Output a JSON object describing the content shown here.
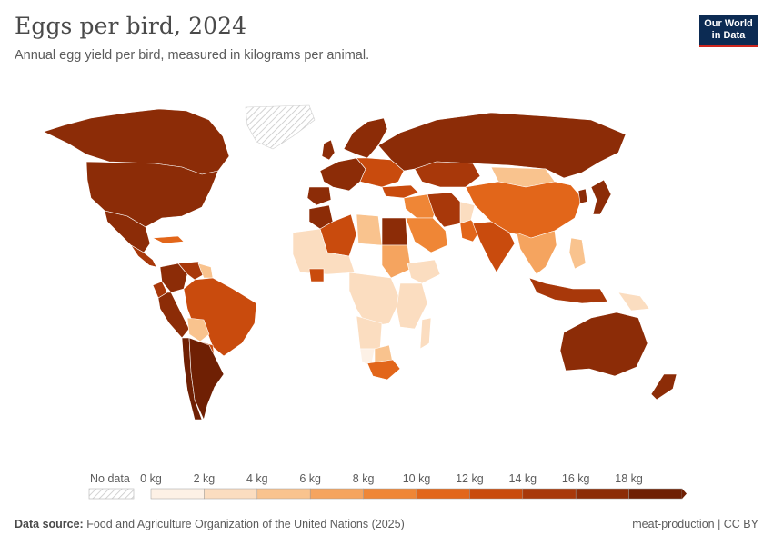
{
  "header": {
    "title": "Eggs per bird, 2024",
    "subtitle": "Annual egg yield per bird, measured in kilograms per animal."
  },
  "logo": {
    "line1": "Our World",
    "line2": "in Data",
    "bg": "#0c2b53",
    "accent": "#ce261e"
  },
  "legend": {
    "no_data_label": "No data",
    "ticks": [
      "0 kg",
      "2 kg",
      "4 kg",
      "6 kg",
      "8 kg",
      "10 kg",
      "12 kg",
      "14 kg",
      "16 kg",
      "18 kg"
    ],
    "bins": [
      {
        "min": 0,
        "max": 2,
        "color": "#fdf1e6"
      },
      {
        "min": 2,
        "max": 4,
        "color": "#fbddc0"
      },
      {
        "min": 4,
        "max": 6,
        "color": "#f9c38e"
      },
      {
        "min": 6,
        "max": 8,
        "color": "#f5a45f"
      },
      {
        "min": 8,
        "max": 10,
        "color": "#ef8636"
      },
      {
        "min": 10,
        "max": 12,
        "color": "#e2661a"
      },
      {
        "min": 12,
        "max": 14,
        "color": "#c94b0d"
      },
      {
        "min": 14,
        "max": 16,
        "color": "#a8380a"
      },
      {
        "min": 16,
        "max": 18,
        "color": "#8c2c07"
      },
      {
        "min": 18,
        "max": 20,
        "color": "#6f2004"
      }
    ]
  },
  "footer": {
    "source_label": "Data source:",
    "source_text": "Food and Agriculture Organization of the United Nations (2025)",
    "right_text": "meat-production | CC BY"
  },
  "chart_data": {
    "type": "map",
    "metric": "eggs per bird (kg)",
    "year": 2024,
    "regions": [
      {
        "name": "Canada",
        "value": 17
      },
      {
        "name": "United States",
        "value": 17
      },
      {
        "name": "Mexico",
        "value": 17
      },
      {
        "name": "Central America",
        "value": 14
      },
      {
        "name": "Caribbean",
        "value": 11
      },
      {
        "name": "Colombia",
        "value": 17
      },
      {
        "name": "Venezuela",
        "value": 15
      },
      {
        "name": "Guyana",
        "value": 4
      },
      {
        "name": "Peru",
        "value": 16
      },
      {
        "name": "Ecuador",
        "value": 14
      },
      {
        "name": "Brazil",
        "value": 13
      },
      {
        "name": "Bolivia",
        "value": 5
      },
      {
        "name": "Paraguay",
        "value": 13
      },
      {
        "name": "Chile",
        "value": 18
      },
      {
        "name": "Argentina",
        "value": 18
      },
      {
        "name": "Greenland",
        "value": null
      },
      {
        "name": "Scandinavia",
        "value": 16
      },
      {
        "name": "United Kingdom",
        "value": 16
      },
      {
        "name": "Western Europe",
        "value": 17
      },
      {
        "name": "Spain",
        "value": 17
      },
      {
        "name": "Eastern Europe",
        "value": 13
      },
      {
        "name": "Russia",
        "value": 17
      },
      {
        "name": "Kazakhstan",
        "value": 14
      },
      {
        "name": "Mongolia",
        "value": 5
      },
      {
        "name": "China",
        "value": 11
      },
      {
        "name": "Japan",
        "value": 16
      },
      {
        "name": "Korea",
        "value": 17
      },
      {
        "name": "Turkey",
        "value": 13
      },
      {
        "name": "Middle East",
        "value": 9
      },
      {
        "name": "Saudi Arabia",
        "value": 9
      },
      {
        "name": "Iran",
        "value": 15
      },
      {
        "name": "Afghanistan",
        "value": 3
      },
      {
        "name": "Pakistan",
        "value": 11
      },
      {
        "name": "India",
        "value": 13
      },
      {
        "name": "Southeast Asia",
        "value": 7
      },
      {
        "name": "Indonesia",
        "value": 15
      },
      {
        "name": "Philippines",
        "value": 5
      },
      {
        "name": "Papua New Guinea",
        "value": 3
      },
      {
        "name": "Australia",
        "value": 16
      },
      {
        "name": "New Zealand",
        "value": 16
      },
      {
        "name": "Morocco",
        "value": 16
      },
      {
        "name": "Algeria",
        "value": 13
      },
      {
        "name": "Libya",
        "value": 5
      },
      {
        "name": "Egypt",
        "value": 16
      },
      {
        "name": "West Africa",
        "value": 2
      },
      {
        "name": "Ivory Coast",
        "value": 12
      },
      {
        "name": "Sudan",
        "value": 6
      },
      {
        "name": "Ethiopia",
        "value": 3
      },
      {
        "name": "Central Africa",
        "value": 2
      },
      {
        "name": "East Africa",
        "value": 3
      },
      {
        "name": "Angola",
        "value": 2
      },
      {
        "name": "Namibia",
        "value": 1
      },
      {
        "name": "Botswana",
        "value": 5
      },
      {
        "name": "South Africa",
        "value": 10
      },
      {
        "name": "Madagascar",
        "value": 3
      }
    ]
  }
}
